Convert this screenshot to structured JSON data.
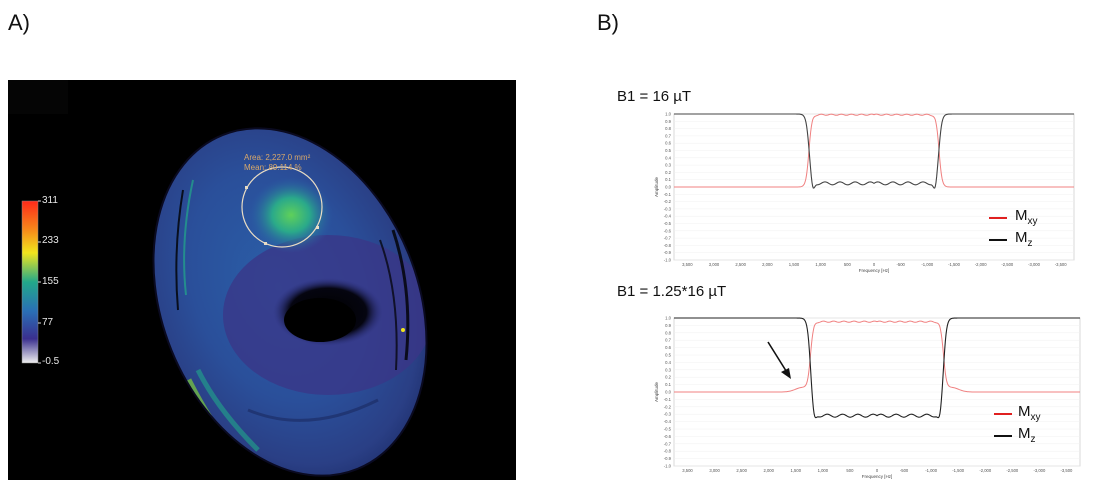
{
  "panel_labels": {
    "a": "A)",
    "b": "B)"
  },
  "mri": {
    "colorbar_labels": [
      "311",
      "233",
      "155",
      "77",
      "-0.5"
    ],
    "roi_area": "Area: 2,227.0 mm²",
    "roi_mean": "Mean: 89.114 %",
    "colormap": [
      "#3a0a3f",
      "#3a2f8f",
      "#2a6fb5",
      "#22a88a",
      "#7ccc3a",
      "#f1e51d",
      "#ff2a1a"
    ]
  },
  "plots": [
    {
      "title": "B1 = 16 µT",
      "ylabel": "Amplitude",
      "xlabel": "Frequency [Hz]",
      "yticks": [
        "1.0",
        "0.9",
        "0.8",
        "0.7",
        "0.6",
        "0.5",
        "0.4",
        "0.3",
        "0.2",
        "0.1",
        "0.0",
        "-0.1",
        "-0.2",
        "-0.3",
        "-0.4",
        "-0.5",
        "-0.6",
        "-0.7",
        "-0.8",
        "-0.9",
        "-1.0"
      ],
      "xticks": [
        "3,500",
        "3,000",
        "2,500",
        "2,000",
        "1,500",
        "1,000",
        "500",
        "0",
        "-500",
        "-1,000",
        "-1,500",
        "-2,000",
        "-2,500",
        "-3,000",
        "-3,500"
      ],
      "legend": [
        {
          "label": "M",
          "sub": "xy",
          "color": "#e02020"
        },
        {
          "label": "M",
          "sub": "z",
          "color": "#111111"
        }
      ],
      "chart_data": {
        "type": "line",
        "x_range": [
          3750,
          -3750
        ],
        "y_range": [
          -1.0,
          1.0
        ],
        "edge_hz": 1220,
        "series": [
          {
            "name": "Mxy",
            "stop_value": 0.0,
            "pass_value": 0.99,
            "pre_bump": 0.0
          },
          {
            "name": "Mz",
            "stop_value": 1.0,
            "pass_value": 0.05,
            "dip": -0.08,
            "pre_bump": 0.0
          }
        ]
      }
    },
    {
      "title": "B1 = 1.25*16 µT",
      "ylabel": "Amplitude",
      "xlabel": "Frequency [Hz]",
      "yticks": [
        "1.0",
        "0.9",
        "0.8",
        "0.7",
        "0.6",
        "0.5",
        "0.4",
        "0.3",
        "0.2",
        "0.1",
        "0.0",
        "-0.1",
        "-0.2",
        "-0.3",
        "-0.4",
        "-0.5",
        "-0.6",
        "-0.7",
        "-0.8",
        "-0.9",
        "-1.0"
      ],
      "xticks": [
        "3,500",
        "3,000",
        "2,500",
        "2,000",
        "1,500",
        "1,000",
        "500",
        "0",
        "-500",
        "-1,000",
        "-1,500",
        "-2,000",
        "-2,500",
        "-3,000",
        "-3,500"
      ],
      "legend": [
        {
          "label": "M",
          "sub": "xy",
          "color": "#e02020"
        },
        {
          "label": "M",
          "sub": "z",
          "color": "#111111"
        }
      ],
      "chart_data": {
        "type": "line",
        "x_range": [
          3750,
          -3750
        ],
        "y_range": [
          -1.0,
          1.0
        ],
        "edge_hz": 1230,
        "series": [
          {
            "name": "Mxy",
            "stop_value": 0.0,
            "pass_value": 0.95,
            "pre_bump": 0.06
          },
          {
            "name": "Mz",
            "stop_value": 1.0,
            "pass_value": -0.32,
            "dip": -0.42,
            "pre_bump": 0.0
          }
        ]
      }
    }
  ]
}
